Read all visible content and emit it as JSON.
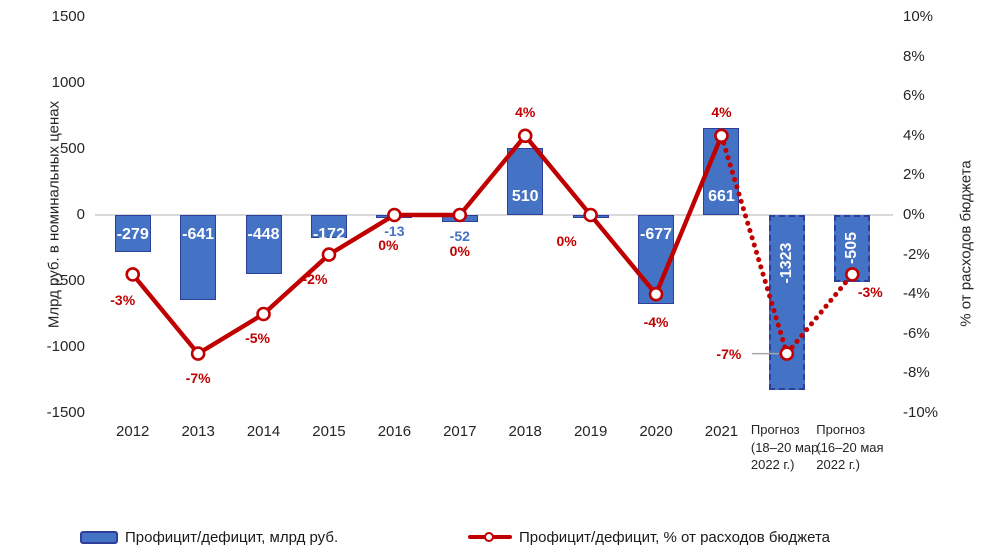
{
  "chart_data": {
    "type": "bar",
    "combo": "bar + line (dual axis)",
    "categories": [
      "2012",
      "2013",
      "2014",
      "2015",
      "2016",
      "2017",
      "2018",
      "2019",
      "2020",
      "2021",
      "Прогноз (18–20 мар. 2022 г.)",
      "Прогноз (16–20 мая 2022 г.)"
    ],
    "category_lines": [
      [
        "2012"
      ],
      [
        "2013"
      ],
      [
        "2014"
      ],
      [
        "2015"
      ],
      [
        "2016"
      ],
      [
        "2017"
      ],
      [
        "2018"
      ],
      [
        "2019"
      ],
      [
        "2020"
      ],
      [
        "2021"
      ],
      [
        "Прогноз",
        "(18–20 мар.",
        "2022 г.)"
      ],
      [
        "Прогноз",
        "(16–20 мая",
        "2022 г.)"
      ]
    ],
    "series": [
      {
        "name": "Профицит/дефицит,  млрд руб.",
        "type": "bar",
        "axis": "left",
        "values": [
          -279,
          -641,
          -448,
          -172,
          -13,
          -52,
          510,
          0,
          -677,
          661,
          -1323,
          -505
        ],
        "labels": [
          "-279",
          "-641",
          "-448",
          "-172",
          "-13",
          "-52",
          "510",
          "",
          "-677",
          "661",
          "-1323",
          "-505"
        ],
        "forecast_indices": [
          10,
          11
        ]
      },
      {
        "name": "Профицит/дефицит,  % от расходов бюджета",
        "type": "line",
        "axis": "right",
        "values": [
          -3,
          -7,
          -5,
          -2,
          0,
          0,
          4,
          0,
          -4,
          4,
          -7,
          -3
        ],
        "labels": [
          "-3%",
          "-7%",
          "-5%",
          "-2%",
          "0%",
          "0%",
          "4%",
          "0%",
          "-4%",
          "4%",
          "-7%",
          "-3%"
        ],
        "dotted_from_index": 9
      }
    ],
    "left_axis": {
      "title": "Млрд руб. в номинальных ценах",
      "min": -1500,
      "max": 1500,
      "ticks": [
        "1500",
        "1000",
        "500",
        "0",
        "-500",
        "-1000",
        "-1500"
      ]
    },
    "right_axis": {
      "title": "% от расходов бюджета",
      "min": -10,
      "max": 10,
      "ticks": [
        "10%",
        "8%",
        "6%",
        "4%",
        "2%",
        "0%",
        "-2%",
        "-4%",
        "-6%",
        "-8%",
        "-10%"
      ]
    },
    "grid": "zero line only",
    "legend_position": "bottom"
  },
  "legend": {
    "items": [
      {
        "label": "Профицит/дефицит,  млрд руб.",
        "swatch": "bar"
      },
      {
        "label": "Профицит/дефицит,  % от расходов бюджета",
        "swatch": "line-marker"
      }
    ]
  },
  "colors": {
    "bar_fill": "#4472C4",
    "bar_border": "#2E3F99",
    "line": "#C00000",
    "bar_label": "#FFFFFF",
    "small_bar_label": "#4472C4",
    "pct_label": "#C00000",
    "axis_text": "#262626",
    "zero_line": "#D9D9D9",
    "leader_line": "#A6A6A6"
  }
}
